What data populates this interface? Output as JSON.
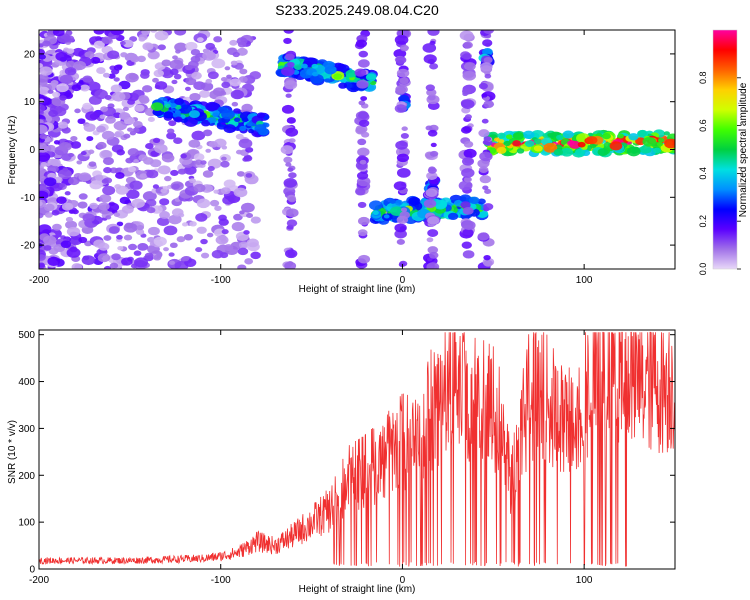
{
  "title": "S233.2025.249.08.04.C20",
  "chart_data": [
    {
      "type": "heatmap",
      "xlabel": "Height of straight line (km)",
      "ylabel": "Frequency (Hz)",
      "xlim": [
        -200,
        150
      ],
      "ylim": [
        -25,
        25
      ],
      "xticks": [
        -200,
        -100,
        0,
        100
      ],
      "yticks": [
        -20,
        -10,
        0,
        10,
        20
      ],
      "colorbar": {
        "label": "Normalized spectral amplitude",
        "range": [
          0,
          1
        ],
        "ticks": [
          "0.0",
          "0.2",
          "0.4",
          "0.6",
          "0.8"
        ],
        "colormap": [
          "#e8d8f8",
          "#a070e8",
          "#5a00ff",
          "#0000ff",
          "#0090ff",
          "#00e0e0",
          "#00d040",
          "#40ff00",
          "#d0ff00",
          "#ffd000",
          "#ff6000",
          "#ff0000",
          "#ff00a0"
        ]
      },
      "features": [
        {
          "name": "noise",
          "x": [
            -200,
            -100
          ],
          "y": [
            -25,
            25
          ],
          "amp": 0.1
        },
        {
          "name": "branch",
          "x": [
            -135,
            -75
          ],
          "y0": 9,
          "y1": 5,
          "amp": 0.45
        },
        {
          "name": "high",
          "x": [
            -68,
            -15
          ],
          "y0": 18,
          "y1": 14,
          "amp": 0.5
        },
        {
          "name": "spot",
          "x": 1,
          "y": 10,
          "amp": 0.4
        },
        {
          "name": "low",
          "x": [
            -15,
            45
          ],
          "y0": -13,
          "y1": -12,
          "amp": 0.55
        },
        {
          "name": "spot",
          "x": 46,
          "y": 19,
          "amp": 0.35
        },
        {
          "name": "spot",
          "x": 16,
          "y": -8,
          "amp": 0.3
        },
        {
          "name": "main",
          "x": [
            47,
            150
          ],
          "y0": 1,
          "y1": 1.5,
          "amp": 0.85
        }
      ]
    },
    {
      "type": "line",
      "xlabel": "Height of straight line (km)",
      "ylabel": "SNR (10 * v/v)",
      "xlim": [
        -200,
        150
      ],
      "ylim": [
        0,
        510
      ],
      "xticks": [
        -200,
        -100,
        0,
        100
      ],
      "yticks": [
        0,
        100,
        200,
        300,
        400,
        500
      ],
      "color": "#f03030",
      "series": [
        {
          "name": "SNR",
          "x": [
            -200,
            -150,
            -110,
            -100,
            -90,
            -80,
            -70,
            -60,
            -50,
            -40,
            -35,
            -30,
            -20,
            -10,
            0,
            10,
            15,
            20,
            30,
            40,
            50,
            55,
            60,
            70,
            80,
            90,
            100,
            110,
            120,
            130,
            140,
            150
          ],
          "y": [
            20,
            20,
            25,
            30,
            40,
            65,
            55,
            80,
            110,
            140,
            170,
            210,
            230,
            260,
            300,
            290,
            370,
            400,
            420,
            400,
            380,
            340,
            200,
            420,
            400,
            330,
            410,
            450,
            430,
            440,
            440,
            440
          ]
        }
      ]
    }
  ]
}
